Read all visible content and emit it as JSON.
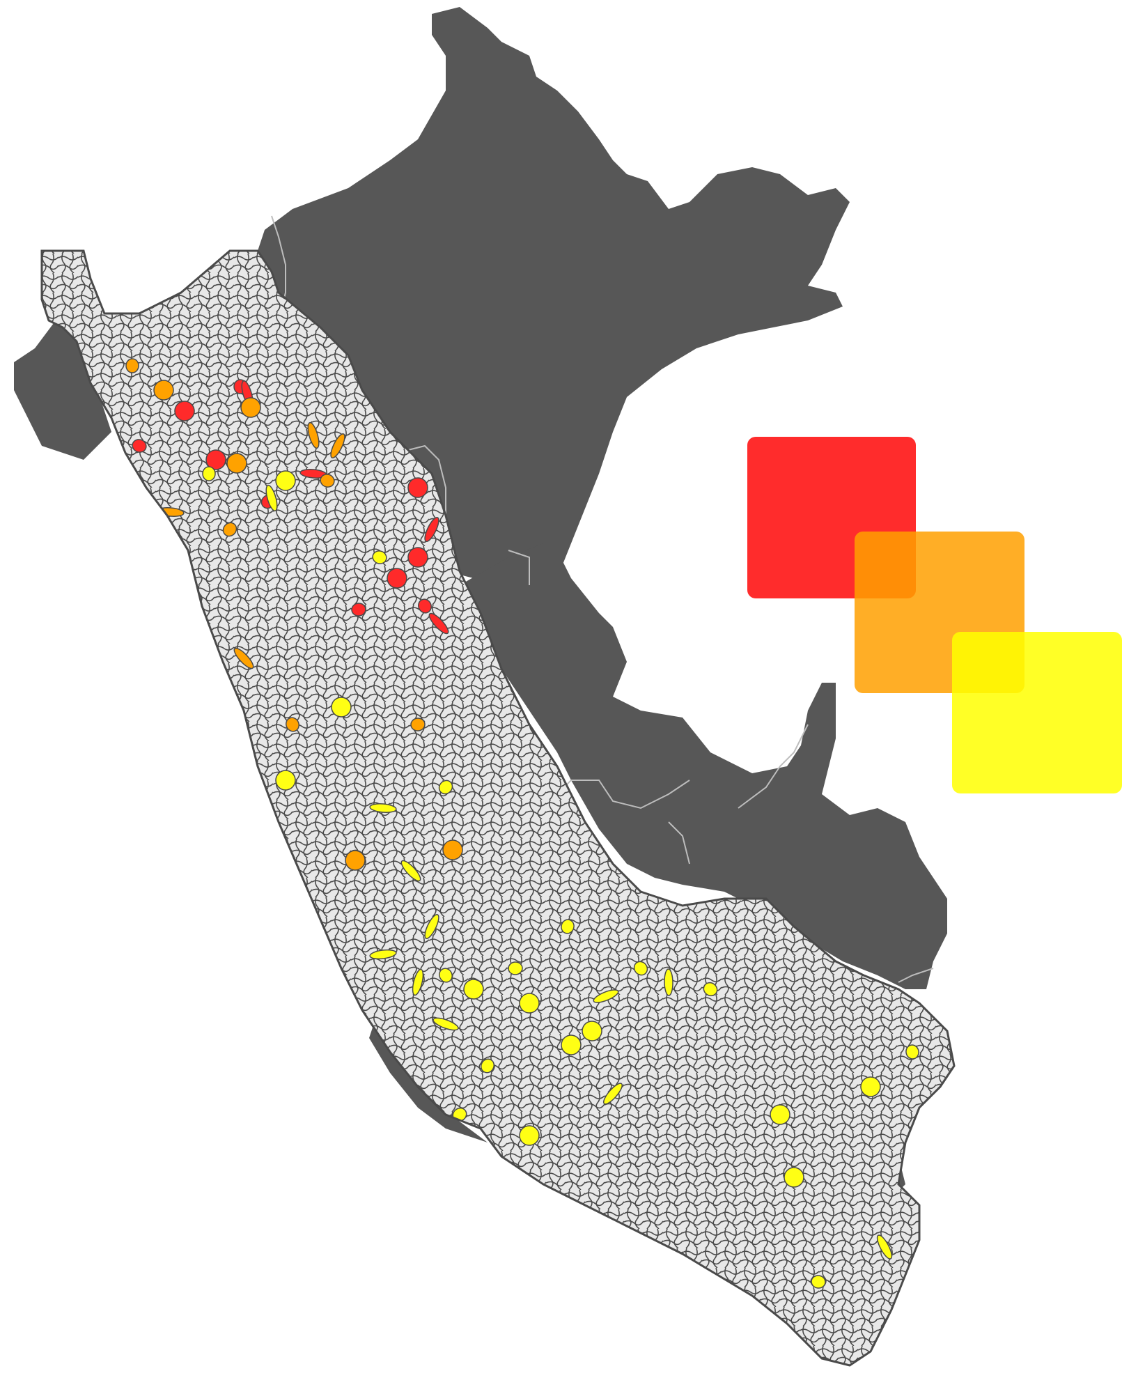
{
  "map": {
    "colors": {
      "background": "#ffffff",
      "region_dark": "#575757",
      "district_fill": "#e8e8e8",
      "district_border": "#4a4a4a",
      "high": "#ff2a2a",
      "medium": "#ffa200",
      "low": "#ffff14"
    },
    "legend": {
      "squares": [
        {
          "name": "legend-square-red",
          "color": "#ff1a1a",
          "opacity": 0.92
        },
        {
          "name": "legend-square-orange",
          "color": "#ffa000",
          "opacity": 0.85
        },
        {
          "name": "legend-square-yellow",
          "color": "#ffff00",
          "opacity": 0.85
        }
      ]
    }
  }
}
